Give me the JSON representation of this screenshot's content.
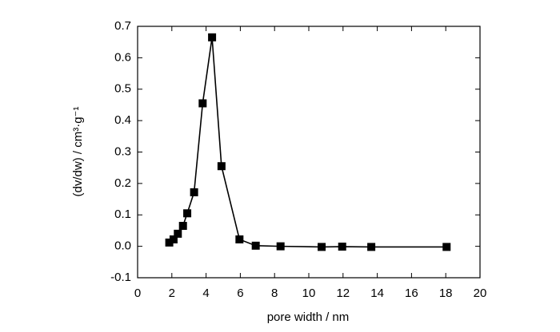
{
  "chart_data": {
    "type": "line",
    "x_label": "pore width / nm",
    "y_label": "(dv/dw) / cm³·g⁻¹",
    "x": [
      1.85,
      2.1,
      2.35,
      2.65,
      2.9,
      3.3,
      3.8,
      4.35,
      4.9,
      5.95,
      6.9,
      8.35,
      10.75,
      11.95,
      13.65,
      18.05
    ],
    "series": [
      {
        "color": "#000000",
        "values": [
          0.012,
          0.022,
          0.04,
          0.065,
          0.105,
          0.172,
          0.455,
          0.665,
          0.255,
          0.022,
          0.002,
          0.0,
          -0.002,
          -0.001,
          -0.002,
          -0.002
        ]
      }
    ],
    "xlim": [
      0,
      20
    ],
    "xticks": [
      0,
      2,
      4,
      6,
      8,
      10,
      12,
      14,
      16,
      18,
      20
    ],
    "ylim": [
      -0.1,
      0.7
    ],
    "yticks": [
      -0.1,
      {
        "value": 0,
        "label": "0.0"
      },
      0.1,
      0.2,
      0.3,
      0.4,
      0.5,
      0.6,
      0.7
    ],
    "grid": false
  }
}
